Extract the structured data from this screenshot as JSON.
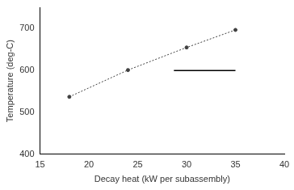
{
  "chart_data": {
    "type": "line",
    "x_label": "Decay heat (kW per subassembly)",
    "y_label": "Temperature (deg-C)",
    "series": [
      {
        "x": [
          18,
          24,
          30,
          35
        ],
        "values": [
          537,
          601,
          655,
          697
        ],
        "color": "#404040",
        "line_style": "dotted",
        "marker": "circle"
      },
      {
        "x": [
          28.7,
          35
        ],
        "values": [
          600,
          600
        ],
        "color": "#000000",
        "line_style": "solid",
        "marker": "none"
      }
    ],
    "xlim": [
      15,
      40
    ],
    "xticks": [
      15,
      20,
      25,
      30,
      35,
      40
    ],
    "ylim": [
      400,
      750
    ],
    "yticks": [
      400,
      500,
      600,
      700
    ],
    "grid": false
  }
}
